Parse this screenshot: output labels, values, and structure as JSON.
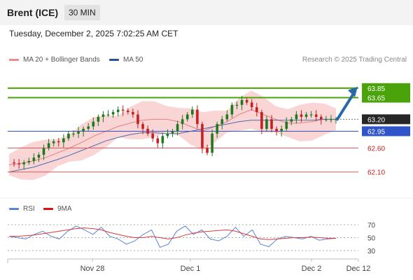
{
  "header": {
    "instrument": "Brent (ICE)",
    "timeframe": "30 MIN",
    "datetime": "Tuesday, December 2, 2025 7:02:25 AM CET",
    "credit": "Research © 2025 Trading Central"
  },
  "legend": {
    "bollinger": "MA 20 + Bollinger Bands",
    "ma50": "MA 50",
    "rsi": "RSI",
    "ma9": "9MA"
  },
  "colors": {
    "resistance": "#4aa30a",
    "pivot": "#2f55c8",
    "support": "#e05a5a",
    "candle": "#1e7a1e",
    "candle_down": "#c62020",
    "band": "#f8c7c7",
    "ma50": "#4c6cae",
    "rsi": "#5b84d6",
    "ma9": "#d93a3a",
    "arrow": "#2a69a8"
  },
  "chart_data": [
    {
      "type": "line",
      "title": "Brent (ICE)",
      "timeframe": "30 MIN",
      "x_ticks": [
        "Nov 28",
        "Dec 1",
        "Dec 2",
        "Dec 12"
      ],
      "ylim": [
        61.6,
        64.3
      ],
      "levels": [
        {
          "value": 63.85,
          "label": "63.85",
          "kind": "resistance"
        },
        {
          "value": 63.65,
          "label": "63.65",
          "kind": "resistance"
        },
        {
          "value": 63.2,
          "label": "63.20",
          "kind": "last"
        },
        {
          "value": 62.95,
          "label": "62.95",
          "kind": "pivot"
        },
        {
          "value": 62.6,
          "label": "62.60",
          "kind": "support"
        },
        {
          "value": 62.1,
          "label": "62.10",
          "kind": "support"
        }
      ],
      "series": [
        {
          "name": "Brent (ICE)",
          "values": [
            62.3,
            62.28,
            62.26,
            62.3,
            62.33,
            62.4,
            62.46,
            62.6,
            62.7,
            62.74,
            62.72,
            62.8,
            62.9,
            62.9,
            62.95,
            63.0,
            63.05,
            63.15,
            63.25,
            63.3,
            63.3,
            63.35,
            63.4,
            63.38,
            63.35,
            63.3,
            63.1,
            63.0,
            62.9,
            62.8,
            62.7,
            62.85,
            62.9,
            62.95,
            63.1,
            63.2,
            63.3,
            63.4,
            63.1,
            62.6,
            62.5,
            62.9,
            63.1,
            63.2,
            63.3,
            63.5,
            63.5,
            63.6,
            63.55,
            63.45,
            63.35,
            63.0,
            63.2,
            63.0,
            62.95,
            63.0,
            63.15,
            63.2,
            63.3,
            63.25,
            63.3,
            63.3,
            63.25,
            63.2,
            63.2,
            63.2,
            63.2
          ]
        },
        {
          "name": "MA 20",
          "values": [
            62.25,
            62.28,
            62.33,
            62.4,
            62.5,
            62.6,
            62.72,
            62.85,
            62.95,
            63.05,
            63.12,
            63.18,
            63.2,
            63.2,
            63.15,
            63.05,
            62.95,
            63.05,
            63.15,
            63.3,
            63.4,
            63.3,
            63.2,
            63.12,
            63.12,
            63.15,
            63.2,
            63.2
          ]
        },
        {
          "name": "MA 50",
          "values": [
            62.1,
            62.15,
            62.2,
            62.28,
            62.36,
            62.45,
            62.55,
            62.65,
            62.75,
            62.82,
            62.88,
            62.92,
            62.92,
            62.9,
            62.9,
            62.95,
            63.0,
            63.05,
            63.1,
            63.15,
            63.18,
            63.18,
            63.18,
            63.18,
            63.18,
            63.18,
            63.2,
            63.2
          ]
        }
      ],
      "forecast_arrow": {
        "from": 63.2,
        "to": 63.85
      }
    },
    {
      "type": "line",
      "y_ticks": [
        70,
        50,
        30
      ],
      "ylim": [
        25,
        80
      ],
      "series": [
        {
          "name": "RSI",
          "values": [
            52,
            50,
            48,
            55,
            60,
            52,
            48,
            60,
            68,
            62,
            55,
            66,
            52,
            48,
            40,
            45,
            55,
            62,
            35,
            40,
            60,
            68,
            55,
            62,
            48,
            45,
            52,
            66,
            52,
            62,
            40,
            36,
            48,
            52,
            50,
            48,
            52,
            46,
            48,
            49
          ]
        },
        {
          "name": "9MA",
          "values": [
            52,
            52,
            53,
            54,
            56,
            58,
            60,
            62,
            64,
            65,
            64,
            62,
            58,
            55,
            52,
            50,
            50,
            52,
            50,
            48,
            50,
            54,
            57,
            59,
            60,
            61,
            62,
            60,
            56,
            52,
            48,
            47,
            48,
            49,
            50,
            50,
            51,
            50,
            49,
            49
          ]
        }
      ]
    }
  ]
}
